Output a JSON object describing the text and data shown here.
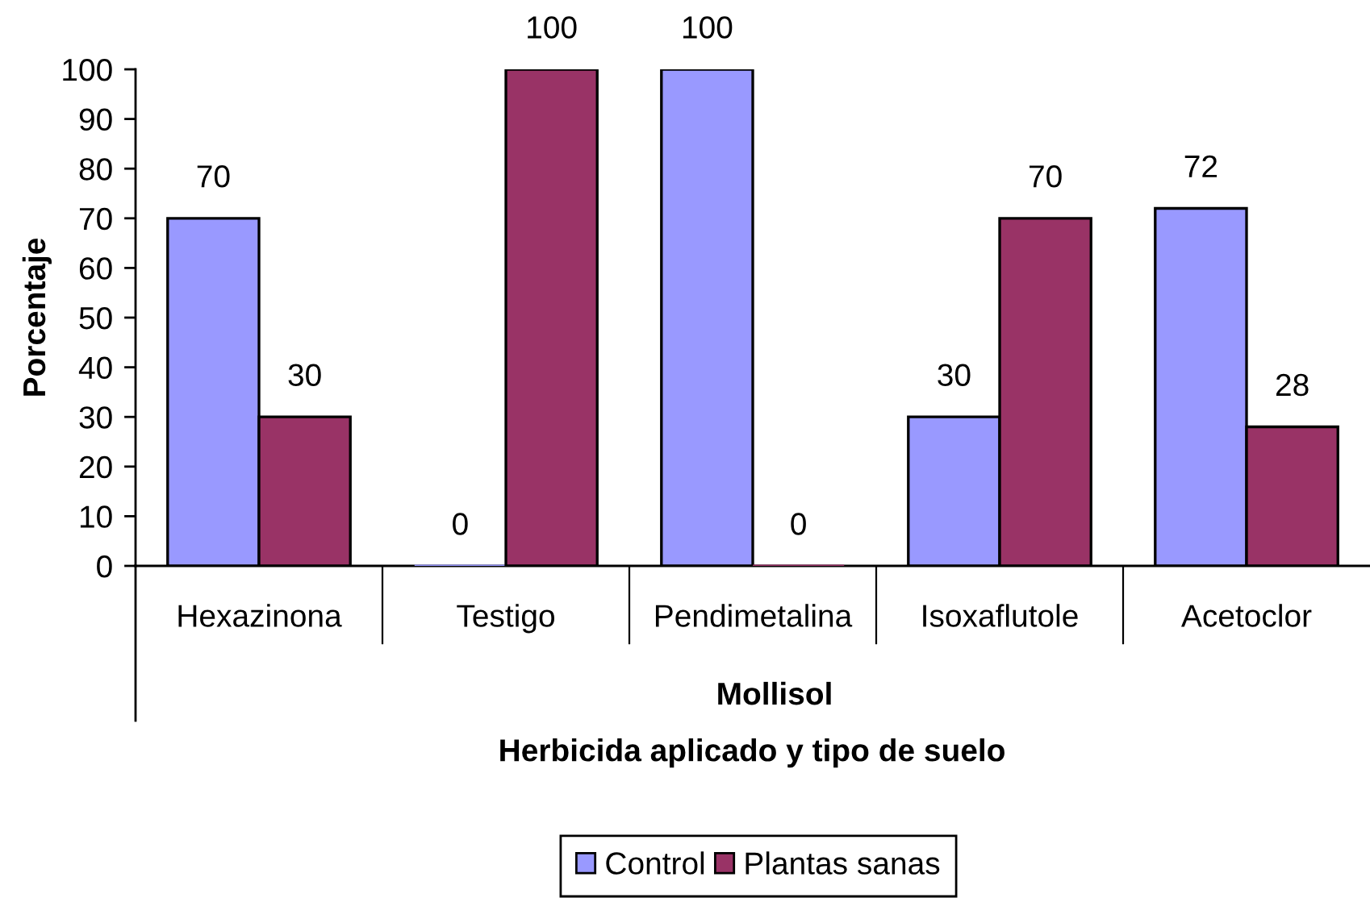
{
  "chart_data": {
    "type": "bar",
    "ylabel": "Porcentaje",
    "xlabel": "Herbicida aplicado y tipo de suelo",
    "annotations": [
      "Mollisol"
    ],
    "categories": [
      "Hexazinona",
      "Testigo",
      "Pendimetalina",
      "Isoxaflutole",
      "Acetoclor"
    ],
    "series": [
      {
        "name": "Control",
        "color": "#9999ff",
        "values": [
          70,
          0,
          100,
          30,
          72
        ]
      },
      {
        "name": "Plantas sanas",
        "color": "#993366",
        "values": [
          30,
          100,
          0,
          70,
          28
        ]
      }
    ],
    "ylim": [
      0,
      100
    ],
    "yticks": [
      0,
      10,
      20,
      30,
      40,
      50,
      60,
      70,
      80,
      90,
      100
    ],
    "data_labels": true,
    "legend": "bottom"
  }
}
